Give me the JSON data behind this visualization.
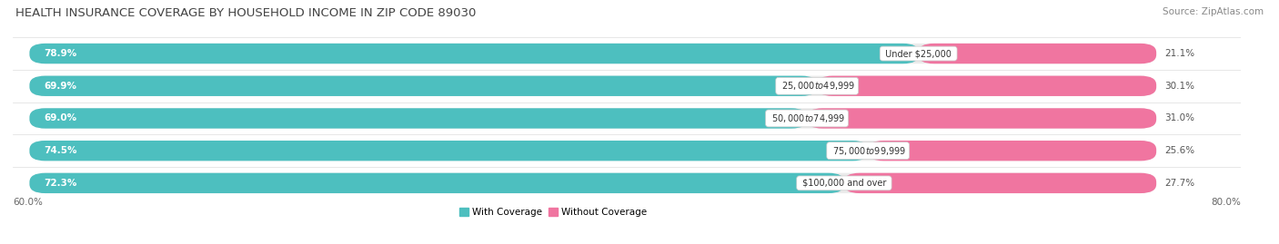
{
  "title": "HEALTH INSURANCE COVERAGE BY HOUSEHOLD INCOME IN ZIP CODE 89030",
  "source": "Source: ZipAtlas.com",
  "categories": [
    "Under $25,000",
    "$25,000 to $49,999",
    "$50,000 to $74,999",
    "$75,000 to $99,999",
    "$100,000 and over"
  ],
  "with_coverage": [
    78.9,
    69.9,
    69.0,
    74.5,
    72.3
  ],
  "without_coverage": [
    21.1,
    30.1,
    31.0,
    25.6,
    27.7
  ],
  "color_coverage": "#4dbfbf",
  "color_no_coverage": "#f075a0",
  "color_bg_bar": "#ebebeb",
  "xlim_left": 60.0,
  "xlim_right": 80.0,
  "x_axis_left_label": "60.0%",
  "x_axis_right_label": "80.0%",
  "legend_coverage": "With Coverage",
  "legend_no_coverage": "Without Coverage",
  "background_color": "#ffffff",
  "title_fontsize": 9.5,
  "bar_height": 0.62,
  "bar_label_fontsize": 7.5,
  "category_fontsize": 7.0,
  "axis_label_fontsize": 7.5,
  "source_fontsize": 7.5
}
